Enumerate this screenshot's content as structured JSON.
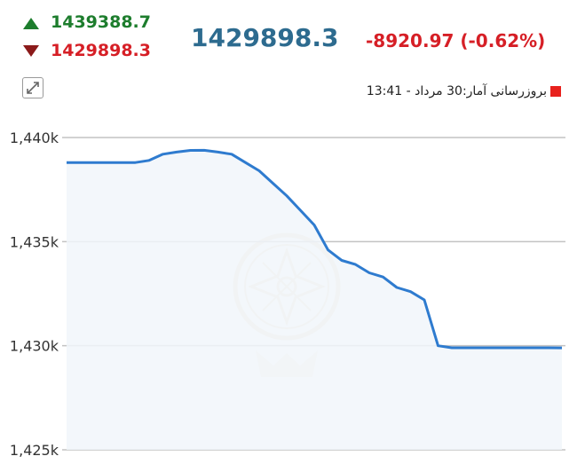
{
  "header": {
    "high_value": "1439388.7",
    "low_value": "1429898.3",
    "last_value": "1429898.3",
    "change_value": "-8920.97 (-0.62%)"
  },
  "update_label": "بروزرسانی آمار:30 مرداد - 13:41",
  "colors": {
    "up": "#1d7d2d",
    "down": "#d61f26",
    "last": "#2d6b8f",
    "line": "#2e7bcf",
    "area": "#f1f6fa",
    "legend": "#e8211d"
  },
  "chart_data": {
    "type": "area",
    "title": "",
    "xlabel": "",
    "ylabel": "",
    "ylim": [
      1425000,
      1441000
    ],
    "y_ticks": [
      1425000,
      1430000,
      1435000,
      1440000
    ],
    "y_tick_labels": [
      "1,425k",
      "1,430k",
      "1,435k",
      "1,440k"
    ],
    "grid": true,
    "series": [
      {
        "values": [
          1438800,
          1438800,
          1438800,
          1438800,
          1438800,
          1438800,
          1438900,
          1439200,
          1439300,
          1439380,
          1439388,
          1439300,
          1439200,
          1438800,
          1438400,
          1437800,
          1437200,
          1436500,
          1435800,
          1434600,
          1434100,
          1433900,
          1433500,
          1433300,
          1432800,
          1432600,
          1432200,
          1430000,
          1429900,
          1429900,
          1429900,
          1429900,
          1429900,
          1429900,
          1429900,
          1429900,
          1429898
        ]
      }
    ]
  }
}
